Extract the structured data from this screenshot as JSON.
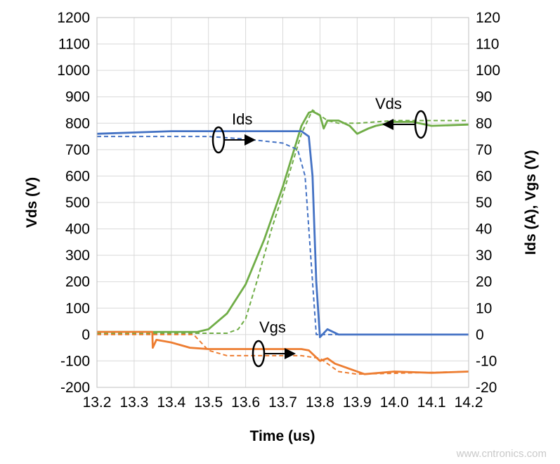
{
  "chart_data": {
    "type": "line",
    "title": "",
    "xlabel": "Time (us)",
    "ylabel": "Vds (V)",
    "y2label": "Ids (A), Vgs (V)",
    "xlim": [
      13.2,
      14.2
    ],
    "ylim": [
      -200,
      1200
    ],
    "y2lim": [
      -20,
      120
    ],
    "xticks": [
      "13.2",
      "13.3",
      "13.4",
      "13.5",
      "13.6",
      "13.7",
      "13.8",
      "13.9",
      "14.0",
      "14.1",
      "14.2"
    ],
    "yticks": [
      "-200",
      "-100",
      "0",
      "100",
      "200",
      "300",
      "400",
      "500",
      "600",
      "700",
      "800",
      "900",
      "1000",
      "1100",
      "1200"
    ],
    "y2ticks": [
      "-20",
      "-10",
      "0",
      "10",
      "20",
      "30",
      "40",
      "50",
      "60",
      "70",
      "80",
      "90",
      "100",
      "110",
      "120"
    ],
    "grid": true,
    "legend": "none",
    "series": [
      {
        "label": "Vds",
        "axis": "left",
        "style": "solid",
        "color": "#70ad47",
        "x": [
          13.2,
          13.47,
          13.5,
          13.55,
          13.6,
          13.65,
          13.7,
          13.75,
          13.77,
          13.78,
          13.8,
          13.81,
          13.82,
          13.85,
          13.88,
          13.9,
          13.93,
          13.95,
          14.0,
          14.05,
          14.1,
          14.2
        ],
        "y": [
          10,
          10,
          20,
          80,
          190,
          360,
          560,
          790,
          840,
          845,
          830,
          780,
          810,
          810,
          790,
          760,
          780,
          790,
          805,
          805,
          790,
          795
        ]
      },
      {
        "label": "Vds",
        "axis": "left",
        "style": "dashed",
        "color": "#70ad47",
        "x": [
          13.2,
          13.55,
          13.58,
          13.6,
          13.63,
          13.67,
          13.7,
          13.75,
          13.78,
          13.8,
          13.82,
          13.85,
          13.9,
          14.0,
          14.2
        ],
        "y": [
          5,
          5,
          20,
          60,
          200,
          400,
          530,
          760,
          850,
          830,
          810,
          800,
          800,
          810,
          810
        ]
      },
      {
        "label": "Ids",
        "axis": "right",
        "style": "solid",
        "color": "#4472c4",
        "x": [
          13.2,
          13.4,
          13.75,
          13.77,
          13.78,
          13.79,
          13.8,
          13.82,
          13.85,
          14.2
        ],
        "y": [
          76,
          77,
          77,
          75,
          60,
          20,
          -1,
          2,
          0,
          0
        ]
      },
      {
        "label": "Ids",
        "axis": "right",
        "style": "dashed",
        "color": "#4472c4",
        "x": [
          13.2,
          13.5,
          13.6,
          13.7,
          13.74,
          13.76,
          13.78,
          13.79,
          14.2
        ],
        "y": [
          75,
          75,
          74,
          72.5,
          70,
          60,
          20,
          0,
          0
        ]
      },
      {
        "label": "Vgs",
        "axis": "right",
        "style": "solid",
        "color": "#ed7d31",
        "x": [
          13.2,
          13.349,
          13.35,
          13.36,
          13.4,
          13.45,
          13.5,
          13.6,
          13.75,
          13.77,
          13.8,
          13.82,
          13.84,
          13.88,
          13.92,
          14.0,
          14.1,
          14.2
        ],
        "y": [
          1,
          1,
          -5,
          -2,
          -3,
          -5,
          -5.5,
          -5.5,
          -5.5,
          -6,
          -10,
          -9,
          -11,
          -13,
          -15,
          -14,
          -14.5,
          -14
        ]
      },
      {
        "label": "Vgs",
        "axis": "right",
        "style": "dashed",
        "color": "#ed7d31",
        "x": [
          13.2,
          13.46,
          13.5,
          13.55,
          13.75,
          13.8,
          13.85,
          13.9,
          14.2
        ],
        "y": [
          0,
          0,
          -6,
          -8,
          -8,
          -9,
          -14,
          -15,
          -14
        ]
      }
    ],
    "annotations": [
      {
        "text": "Ids",
        "points_to": "right axis"
      },
      {
        "text": "Vds",
        "points_to": "left axis"
      },
      {
        "text": "Vgs",
        "points_to": "right axis"
      }
    ]
  },
  "watermark": "www.cntronics.com"
}
